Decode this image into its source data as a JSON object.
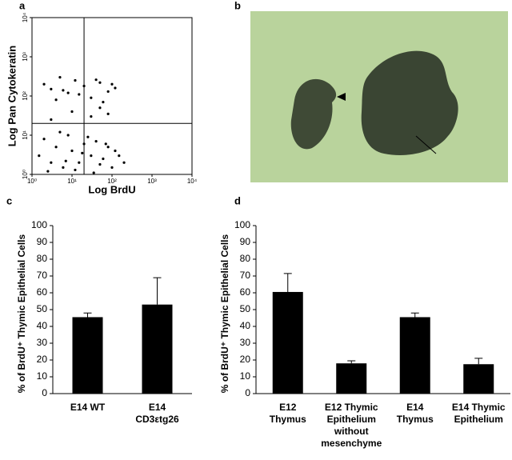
{
  "chart_data": [
    {
      "type": "scatter",
      "label": "a",
      "xlabel": "Log BrdU",
      "ylabel": "Log Pan Cytokeratin",
      "log_scale": true,
      "color": "#000000",
      "xlim": [
        1,
        10000
      ],
      "ylim": [
        1,
        10000
      ],
      "xticks": [
        {
          "value": 1,
          "label": "10⁰"
        },
        {
          "value": 10,
          "label": "10¹"
        },
        {
          "value": 100,
          "label": "10²"
        },
        {
          "value": 1000,
          "label": "10³"
        },
        {
          "value": 10000,
          "label": "10⁴"
        }
      ],
      "yticks": [
        {
          "value": 1,
          "label": "10⁰"
        },
        {
          "value": 10,
          "label": "10¹"
        },
        {
          "value": 100,
          "label": "10²"
        },
        {
          "value": 1000,
          "label": "10³"
        },
        {
          "value": 10000,
          "label": "10⁴"
        }
      ],
      "quadrant": [
        20,
        20
      ],
      "x": [
        2,
        3,
        5,
        8,
        12,
        20,
        30,
        50,
        80,
        120,
        4,
        15,
        40,
        60,
        100,
        6,
        10,
        30,
        50,
        3,
        80,
        1.5,
        2,
        3,
        4,
        6,
        8,
        10,
        15,
        20,
        30,
        40,
        60,
        80,
        100,
        150,
        200,
        2.5,
        5,
        12,
        25,
        50,
        70,
        120,
        7,
        18,
        35
      ],
      "y": [
        200,
        150,
        300,
        120,
        250,
        180,
        90,
        220,
        130,
        160,
        80,
        110,
        260,
        70,
        200,
        140,
        40,
        30,
        50,
        25,
        35,
        3,
        8,
        2,
        5,
        1.5,
        10,
        4,
        2,
        6,
        3,
        7,
        2.5,
        5,
        1.5,
        3,
        2,
        1.2,
        12,
        1.3,
        9,
        1.8,
        6,
        4,
        2.2,
        3.5,
        1.1
      ]
    },
    {
      "type": "image",
      "label": "b"
    },
    {
      "type": "bar",
      "label": "c",
      "ylabel": "% of BrdU⁺ Thymic Epithelial Cells",
      "color": "#000000",
      "categories": [
        [
          "E14 WT"
        ],
        [
          "E14",
          "CD3εtg26"
        ]
      ],
      "values": [
        45.5,
        53
      ],
      "errors": [
        2.5,
        16
      ],
      "ylim": [
        0,
        100
      ],
      "yticks": [
        0,
        10,
        20,
        30,
        40,
        50,
        60,
        70,
        80,
        90,
        100
      ]
    },
    {
      "type": "bar",
      "label": "d",
      "ylabel": "% of BrdU⁺ Thymic Epithelial Cells",
      "color": "#000000",
      "categories": [
        [
          "E12",
          "Thymus"
        ],
        [
          "E12 Thymic",
          "Epithelium",
          "without",
          "mesenchyme"
        ],
        [
          "E14",
          "Thymus"
        ],
        [
          "E14 Thymic",
          "Epithelium"
        ]
      ],
      "values": [
        60.5,
        18,
        45.5,
        17.5
      ],
      "errors": [
        11,
        1.5,
        2.5,
        3.5
      ],
      "ylim": [
        0,
        100
      ],
      "yticks": [
        0,
        10,
        20,
        30,
        40,
        50,
        60,
        70,
        80,
        90,
        100
      ]
    }
  ]
}
